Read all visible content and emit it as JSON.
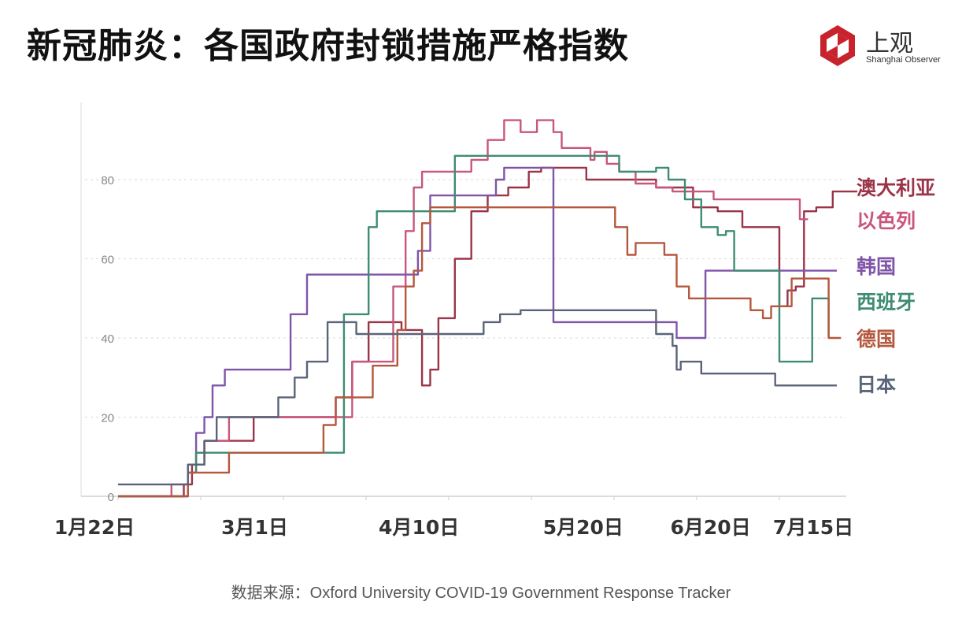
{
  "title": "新冠肺炎：各国政府封锁措施严格指数",
  "logo": {
    "name": "上观",
    "subtitle": "Shanghai Observer"
  },
  "source": "数据来源：Oxford University COVID-19 Government Response Tracker",
  "chart_data": {
    "type": "line",
    "title": "新冠肺炎：各国政府封锁措施严格指数",
    "xlabel": "",
    "ylabel": "",
    "x_range": [
      "2020-01-22",
      "2020-07-15"
    ],
    "ylim": [
      0,
      100
    ],
    "y_ticks": [
      0,
      20,
      40,
      60,
      80
    ],
    "x_ticks": [
      {
        "label": "1月22日",
        "date": "2020-01-22"
      },
      {
        "label": "3月1日",
        "date": "2020-03-01"
      },
      {
        "label": "4月10日",
        "date": "2020-04-10"
      },
      {
        "label": "5月20日",
        "date": "2020-05-20"
      },
      {
        "label": "6月20日",
        "date": "2020-06-20"
      },
      {
        "label": "7月15日",
        "date": "2020-07-15"
      }
    ],
    "grid": "horizontal-dashed",
    "legend": "right-end-labels",
    "series": [
      {
        "name": "澳大利亚",
        "color": "#9b3448",
        "step": true,
        "points": [
          [
            "2020-01-22",
            0
          ],
          [
            "2020-02-05",
            0
          ],
          [
            "2020-02-07",
            3
          ],
          [
            "2020-02-09",
            8
          ],
          [
            "2020-02-12",
            14
          ],
          [
            "2020-02-17",
            14
          ],
          [
            "2020-02-24",
            20
          ],
          [
            "2020-03-13",
            20
          ],
          [
            "2020-03-15",
            25
          ],
          [
            "2020-03-19",
            34
          ],
          [
            "2020-03-21",
            34
          ],
          [
            "2020-03-23",
            44
          ],
          [
            "2020-03-29",
            44
          ],
          [
            "2020-03-31",
            42
          ],
          [
            "2020-04-03",
            42
          ],
          [
            "2020-04-05",
            28
          ],
          [
            "2020-04-07",
            32
          ],
          [
            "2020-04-09",
            45
          ],
          [
            "2020-04-13",
            60
          ],
          [
            "2020-04-17",
            72
          ],
          [
            "2020-04-21",
            76
          ],
          [
            "2020-04-26",
            78
          ],
          [
            "2020-05-01",
            82
          ],
          [
            "2020-05-04",
            83
          ],
          [
            "2020-05-08",
            83
          ],
          [
            "2020-05-10",
            83
          ],
          [
            "2020-05-15",
            80
          ],
          [
            "2020-06-01",
            78
          ],
          [
            "2020-06-10",
            73
          ],
          [
            "2020-06-16",
            72
          ],
          [
            "2020-06-22",
            68
          ],
          [
            "2020-06-27",
            68
          ],
          [
            "2020-07-01",
            48
          ],
          [
            "2020-07-03",
            52
          ],
          [
            "2020-07-05",
            53
          ],
          [
            "2020-07-07",
            72
          ],
          [
            "2020-07-10",
            73
          ],
          [
            "2020-07-14",
            77
          ],
          [
            "2020-07-20",
            77
          ]
        ]
      },
      {
        "name": "以色列",
        "color": "#c8567e",
        "step": true,
        "points": [
          [
            "2020-01-22",
            0
          ],
          [
            "2020-02-02",
            0
          ],
          [
            "2020-02-04",
            3
          ],
          [
            "2020-02-08",
            6
          ],
          [
            "2020-02-10",
            11
          ],
          [
            "2020-02-12",
            14
          ],
          [
            "2020-02-18",
            20
          ],
          [
            "2020-02-26",
            20
          ],
          [
            "2020-03-01",
            20
          ],
          [
            "2020-03-07",
            20
          ],
          [
            "2020-03-17",
            20
          ],
          [
            "2020-03-19",
            34
          ],
          [
            "2020-03-27",
            34
          ],
          [
            "2020-03-29",
            53
          ],
          [
            "2020-04-01",
            67
          ],
          [
            "2020-04-03",
            78
          ],
          [
            "2020-04-05",
            82
          ],
          [
            "2020-04-17",
            85
          ],
          [
            "2020-04-21",
            90
          ],
          [
            "2020-04-25",
            95
          ],
          [
            "2020-04-29",
            92
          ],
          [
            "2020-05-03",
            95
          ],
          [
            "2020-05-07",
            92
          ],
          [
            "2020-05-09",
            88
          ],
          [
            "2020-05-16",
            85
          ],
          [
            "2020-05-17",
            87
          ],
          [
            "2020-05-20",
            84
          ],
          [
            "2020-05-23",
            82
          ],
          [
            "2020-05-27",
            79
          ],
          [
            "2020-06-01",
            78
          ],
          [
            "2020-06-05",
            77
          ],
          [
            "2020-06-15",
            75
          ],
          [
            "2020-06-20",
            75
          ],
          [
            "2020-06-25",
            75
          ],
          [
            "2020-07-04",
            75
          ],
          [
            "2020-07-06",
            70
          ],
          [
            "2020-07-08",
            70
          ]
        ]
      },
      {
        "name": "韩国",
        "color": "#7f55a8",
        "step": true,
        "points": [
          [
            "2020-01-22",
            0
          ],
          [
            "2020-02-06",
            0
          ],
          [
            "2020-02-08",
            8
          ],
          [
            "2020-02-10",
            16
          ],
          [
            "2020-02-12",
            20
          ],
          [
            "2020-02-14",
            28
          ],
          [
            "2020-02-17",
            32
          ],
          [
            "2020-02-28",
            32
          ],
          [
            "2020-03-04",
            46
          ],
          [
            "2020-03-08",
            56
          ],
          [
            "2020-03-17",
            56
          ],
          [
            "2020-03-23",
            56
          ],
          [
            "2020-04-01",
            56
          ],
          [
            "2020-04-04",
            62
          ],
          [
            "2020-04-07",
            76
          ],
          [
            "2020-04-12",
            76
          ],
          [
            "2020-04-21",
            76
          ],
          [
            "2020-04-23",
            80
          ],
          [
            "2020-04-25",
            83
          ],
          [
            "2020-05-02",
            83
          ],
          [
            "2020-05-05",
            83
          ],
          [
            "2020-05-07",
            44
          ],
          [
            "2020-05-16",
            44
          ],
          [
            "2020-06-02",
            44
          ],
          [
            "2020-06-06",
            40
          ],
          [
            "2020-06-11",
            40
          ],
          [
            "2020-06-13",
            57
          ],
          [
            "2020-06-20",
            57
          ],
          [
            "2020-07-02",
            57
          ],
          [
            "2020-07-15",
            57
          ]
        ]
      },
      {
        "name": "西班牙",
        "color": "#3e8c73",
        "step": true,
        "points": [
          [
            "2020-01-22",
            0
          ],
          [
            "2020-02-06",
            0
          ],
          [
            "2020-02-08",
            6
          ],
          [
            "2020-02-10",
            11
          ],
          [
            "2020-02-15",
            11
          ],
          [
            "2020-02-25",
            11
          ],
          [
            "2020-03-15",
            11
          ],
          [
            "2020-03-17",
            46
          ],
          [
            "2020-03-21",
            46
          ],
          [
            "2020-03-23",
            68
          ],
          [
            "2020-03-25",
            72
          ],
          [
            "2020-04-05",
            72
          ],
          [
            "2020-04-09",
            72
          ],
          [
            "2020-04-13",
            86
          ],
          [
            "2020-04-21",
            86
          ],
          [
            "2020-05-10",
            86
          ],
          [
            "2020-05-20",
            86
          ],
          [
            "2020-05-23",
            82
          ],
          [
            "2020-06-01",
            83
          ],
          [
            "2020-06-04",
            80
          ],
          [
            "2020-06-08",
            75
          ],
          [
            "2020-06-12",
            68
          ],
          [
            "2020-06-16",
            66
          ],
          [
            "2020-06-18",
            67
          ],
          [
            "2020-06-20",
            57
          ],
          [
            "2020-06-25",
            57
          ],
          [
            "2020-06-28",
            57
          ],
          [
            "2020-07-01",
            34
          ],
          [
            "2020-07-04",
            34
          ],
          [
            "2020-07-07",
            34
          ],
          [
            "2020-07-09",
            50
          ],
          [
            "2020-07-11",
            50
          ],
          [
            "2020-07-13",
            40
          ]
        ]
      },
      {
        "name": "德国",
        "color": "#b5583e",
        "step": true,
        "points": [
          [
            "2020-01-22",
            0
          ],
          [
            "2020-02-06",
            0
          ],
          [
            "2020-02-08",
            6
          ],
          [
            "2020-02-15",
            6
          ],
          [
            "2020-02-18",
            11
          ],
          [
            "2020-02-24",
            11
          ],
          [
            "2020-03-01",
            11
          ],
          [
            "2020-03-10",
            11
          ],
          [
            "2020-03-12",
            18
          ],
          [
            "2020-03-15",
            25
          ],
          [
            "2020-03-22",
            25
          ],
          [
            "2020-03-24",
            33
          ],
          [
            "2020-03-28",
            33
          ],
          [
            "2020-03-30",
            42
          ],
          [
            "2020-04-01",
            53
          ],
          [
            "2020-04-03",
            57
          ],
          [
            "2020-04-05",
            69
          ],
          [
            "2020-04-07",
            73
          ],
          [
            "2020-04-14",
            73
          ],
          [
            "2020-05-10",
            73
          ],
          [
            "2020-05-20",
            73
          ],
          [
            "2020-05-22",
            68
          ],
          [
            "2020-05-25",
            61
          ],
          [
            "2020-05-27",
            64
          ],
          [
            "2020-06-01",
            64
          ],
          [
            "2020-06-03",
            61
          ],
          [
            "2020-06-06",
            53
          ],
          [
            "2020-06-09",
            50
          ],
          [
            "2020-06-20",
            50
          ],
          [
            "2020-06-24",
            47
          ],
          [
            "2020-06-27",
            45
          ],
          [
            "2020-06-29",
            48
          ],
          [
            "2020-07-02",
            48
          ],
          [
            "2020-07-04",
            55
          ],
          [
            "2020-07-06",
            55
          ],
          [
            "2020-07-11",
            55
          ],
          [
            "2020-07-13",
            40
          ],
          [
            "2020-07-16",
            40
          ]
        ]
      },
      {
        "name": "日本",
        "color": "#5a6478",
        "step": true,
        "points": [
          [
            "2020-01-22",
            3
          ],
          [
            "2020-02-05",
            3
          ],
          [
            "2020-02-08",
            8
          ],
          [
            "2020-02-12",
            14
          ],
          [
            "2020-02-15",
            20
          ],
          [
            "2020-02-25",
            20
          ],
          [
            "2020-03-01",
            25
          ],
          [
            "2020-03-05",
            30
          ],
          [
            "2020-03-08",
            34
          ],
          [
            "2020-03-13",
            44
          ],
          [
            "2020-03-17",
            44
          ],
          [
            "2020-03-20",
            41
          ],
          [
            "2020-03-25",
            41
          ],
          [
            "2020-04-02",
            41
          ],
          [
            "2020-04-15",
            41
          ],
          [
            "2020-04-20",
            44
          ],
          [
            "2020-04-24",
            46
          ],
          [
            "2020-04-29",
            47
          ],
          [
            "2020-05-01",
            47
          ],
          [
            "2020-05-15",
            47
          ],
          [
            "2020-05-29",
            47
          ],
          [
            "2020-06-01",
            41
          ],
          [
            "2020-06-05",
            38
          ],
          [
            "2020-06-06",
            32
          ],
          [
            "2020-06-07",
            34
          ],
          [
            "2020-06-12",
            31
          ],
          [
            "2020-06-20",
            31
          ],
          [
            "2020-06-30",
            28
          ],
          [
            "2020-07-15",
            28
          ]
        ]
      }
    ]
  }
}
